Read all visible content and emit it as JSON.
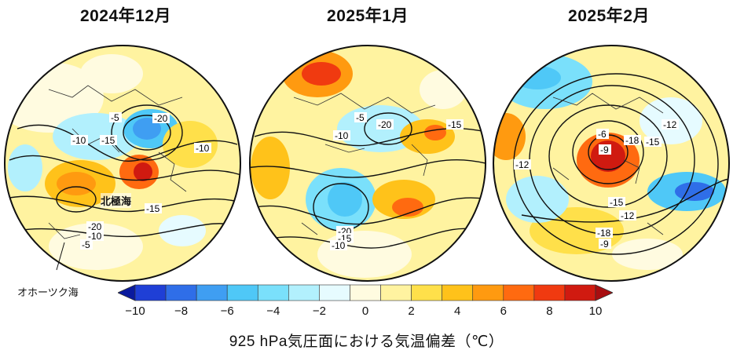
{
  "panels": [
    {
      "title": "2024年12月",
      "contour_labels": [
        "-20",
        "-5",
        "-10",
        "-15",
        "-10",
        "-15",
        "-20",
        "-10",
        "-5"
      ],
      "annotations": {
        "arctic": "北極海",
        "okhotsk": "オホーツク海"
      }
    },
    {
      "title": "2025年1月",
      "contour_labels": [
        "-5",
        "-20",
        "-15",
        "-10",
        "-20",
        "-15",
        "-10"
      ]
    },
    {
      "title": "2025年2月",
      "contour_labels": [
        "-6",
        "-12",
        "-9",
        "-18",
        "-15",
        "-12",
        "-15",
        "-12",
        "-18",
        "-9"
      ]
    }
  ],
  "colorbar": {
    "ticks": [
      "-10",
      "-8",
      "-6",
      "-4",
      "-2",
      "0",
      "2",
      "4",
      "6",
      "8",
      "10"
    ],
    "title": "925 hPa気圧面における気温偏差（℃）",
    "colors": [
      "#0a1a9e",
      "#1f3fd6",
      "#2f6ee8",
      "#3f9ef2",
      "#4fc8f7",
      "#7ae0fb",
      "#b2f0fd",
      "#e6fbff",
      "#fffbe0",
      "#fff3a0",
      "#ffe04a",
      "#ffc21a",
      "#ff9a10",
      "#ff6a10",
      "#f03a10",
      "#d01a10",
      "#a80e10"
    ]
  }
}
